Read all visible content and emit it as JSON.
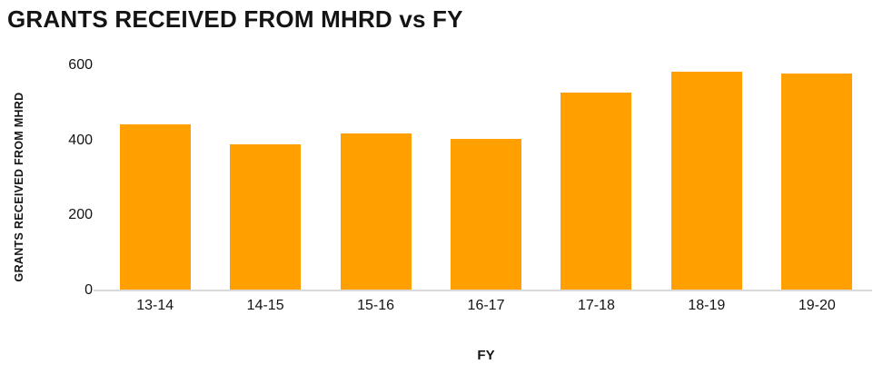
{
  "chart_data": {
    "type": "bar",
    "title": "GRANTS RECEIVED FROM MHRD vs FY",
    "xlabel": "FY",
    "ylabel": "GRANTS RECEIVED FROM MHRD",
    "categories": [
      "13-14",
      "14-15",
      "15-16",
      "16-17",
      "17-18",
      "18-19",
      "19-20"
    ],
    "values": [
      440,
      388,
      415,
      402,
      524,
      581,
      575
    ],
    "ylim": [
      0,
      600
    ],
    "yticks": [
      0,
      200,
      400,
      600
    ],
    "bar_color": "#FFA000",
    "grid": false,
    "legend_position": "none",
    "background_color": "#FFFFFF"
  }
}
